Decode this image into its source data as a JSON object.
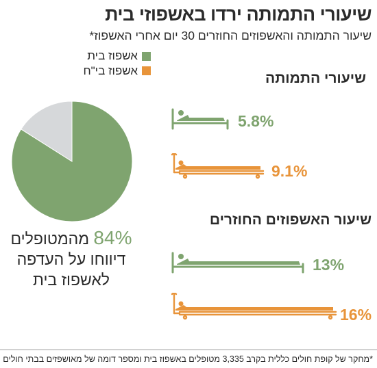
{
  "title": "שיעורי התמותה ירדו באשפוזי בית",
  "subtitle": "שיעור התמותה והאשפוזים החוזרים 30 יום אחרי האשפוז*",
  "legend": [
    {
      "label": "אשפוז בית",
      "color": "#7fa46f"
    },
    {
      "label": "אשפוז בי\"ח",
      "color": "#e8943a"
    }
  ],
  "colors": {
    "home": "#7fa46f",
    "hospital": "#e8943a",
    "rest": "#d6d8da"
  },
  "pie": {
    "percent_text": "84%",
    "text": "מהמטופלים",
    "line2": "דיווחו על העדפה",
    "line3": "לאשפוז בית"
  },
  "sections": {
    "mortality_title": "שיעורי התמותה",
    "readmission_title": "שיעור האשפוזים החוזרים"
  },
  "values": {
    "mortality_home": "5.8%",
    "mortality_hospital": "9.1%",
    "readm_home": "13%",
    "readm_hospital": "16%"
  },
  "footnote": "*מחקר של קופת חולים כללית בקרב 3,335 מטופלים באשפוז בית ומספר דומה של מאושפזים בבתי חולים",
  "chart_data": [
    {
      "type": "pie",
      "series": [
        {
          "name": "דיווחו על העדפה לאשפוז בית",
          "value": 84
        },
        {
          "value": 16
        }
      ]
    },
    {
      "type": "bar",
      "title": "שיעורי התמותה",
      "categories": [
        "אשפוז בית",
        "אשפוז בי\"ח"
      ],
      "values": [
        5.8,
        9.1
      ]
    },
    {
      "type": "bar",
      "title": "שיעור האשפוזים החוזרים",
      "categories": [
        "אשפוז בית",
        "אשפוז בי\"ח"
      ],
      "values": [
        13,
        16
      ]
    }
  ]
}
